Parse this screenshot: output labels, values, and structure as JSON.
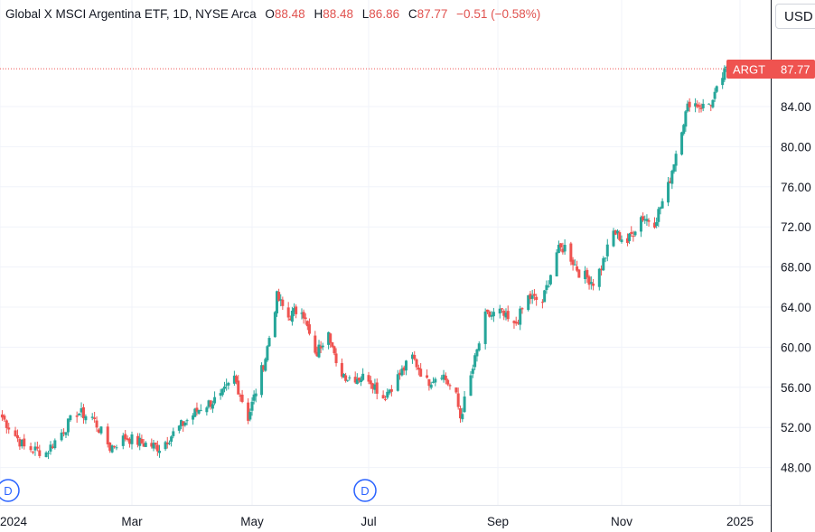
{
  "header": {
    "symbol": "Global X MSCI Argentina ETF, 1D, NYSE Arca",
    "o_label": "O",
    "o_value": "88.48",
    "h_label": "H",
    "h_value": "88.48",
    "l_label": "L",
    "l_value": "86.86",
    "c_label": "C",
    "c_value": "87.77",
    "change": "−0.51 (−0.58%)"
  },
  "currency_button": "USD",
  "price_tag": {
    "ticker": "ARGT",
    "price": "87.77"
  },
  "colors": {
    "up": "#26a69a",
    "down": "#ef5350",
    "tag": "#ef5350",
    "grid": "#f0f3fa",
    "axis": "#131722"
  },
  "chart_data": {
    "type": "candlestick",
    "ylim": [
      46,
      92
    ],
    "y_ticks": [
      "84.00",
      "80.00",
      "76.00",
      "72.00",
      "68.00",
      "64.00",
      "60.00",
      "56.00",
      "52.00",
      "48.00"
    ],
    "x_ticks": [
      "2024",
      "Mar",
      "May",
      "Jul",
      "Sep",
      "Nov",
      "2025"
    ],
    "last_price": 87.77,
    "dividend_markers": [
      {
        "label": "D",
        "date": "2024-01"
      },
      {
        "label": "D",
        "date": "2024-07"
      }
    ],
    "anchors": [
      [
        "2024-01-02",
        53.0
      ],
      [
        "2024-01-12",
        50.0
      ],
      [
        "2024-01-22",
        49.5
      ],
      [
        "2024-02-05",
        53.5
      ],
      [
        "2024-02-12",
        53.0
      ],
      [
        "2024-02-20",
        50.0
      ],
      [
        "2024-02-27",
        51.0
      ],
      [
        "2024-03-05",
        50.5
      ],
      [
        "2024-03-15",
        50.0
      ],
      [
        "2024-03-25",
        52.0
      ],
      [
        "2024-04-05",
        54.0
      ],
      [
        "2024-04-15",
        55.0
      ],
      [
        "2024-04-22",
        57.0
      ],
      [
        "2024-04-29",
        53.0
      ],
      [
        "2024-05-08",
        59.0
      ],
      [
        "2024-05-14",
        65.0
      ],
      [
        "2024-05-20",
        63.0
      ],
      [
        "2024-05-27",
        64.0
      ],
      [
        "2024-06-03",
        59.0
      ],
      [
        "2024-06-10",
        62.0
      ],
      [
        "2024-06-14",
        58.0
      ],
      [
        "2024-06-20",
        57.0
      ],
      [
        "2024-07-01",
        57.0
      ],
      [
        "2024-07-08",
        55.0
      ],
      [
        "2024-07-15",
        57.0
      ],
      [
        "2024-07-22",
        59.0
      ],
      [
        "2024-07-29",
        56.5
      ],
      [
        "2024-08-05",
        57.5
      ],
      [
        "2024-08-12",
        55.0
      ],
      [
        "2024-08-14",
        53.0
      ],
      [
        "2024-08-19",
        57.0
      ],
      [
        "2024-08-26",
        63.0
      ],
      [
        "2024-09-02",
        63.5
      ],
      [
        "2024-09-09",
        62.0
      ],
      [
        "2024-09-16",
        65.0
      ],
      [
        "2024-09-23",
        64.5
      ],
      [
        "2024-09-30",
        69.5
      ],
      [
        "2024-10-04",
        70.0
      ],
      [
        "2024-10-11",
        67.5
      ],
      [
        "2024-10-18",
        66.5
      ],
      [
        "2024-10-22",
        68.0
      ],
      [
        "2024-10-28",
        71.5
      ],
      [
        "2024-11-04",
        70.5
      ],
      [
        "2024-11-11",
        73.0
      ],
      [
        "2024-11-18",
        72.5
      ],
      [
        "2024-11-25",
        76.0
      ],
      [
        "2024-12-02",
        82.0
      ],
      [
        "2024-12-06",
        84.5
      ],
      [
        "2024-12-13",
        84.0
      ],
      [
        "2024-12-18",
        84.5
      ],
      [
        "2024-12-23",
        87.0
      ],
      [
        "2024-12-27",
        88.2
      ],
      [
        "2024-12-31",
        87.77
      ]
    ]
  }
}
